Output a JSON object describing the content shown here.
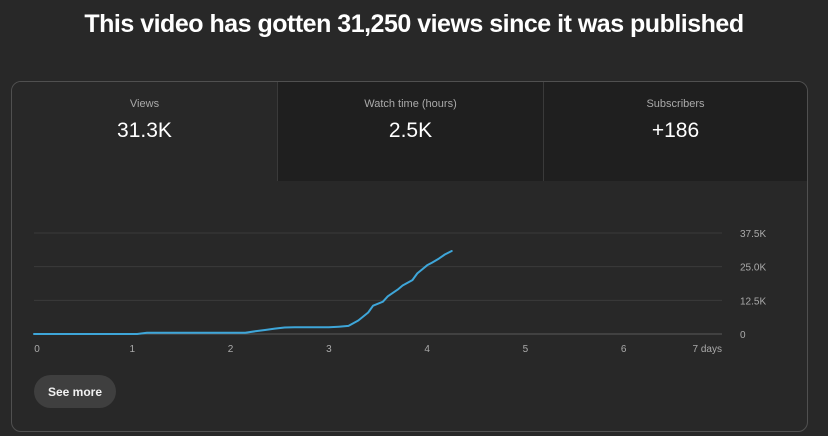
{
  "headline": "This video has gotten 31,250 views since it was published",
  "metrics": [
    {
      "label": "Views",
      "value": "31.3K"
    },
    {
      "label": "Watch time (hours)",
      "value": "2.5K"
    },
    {
      "label": "Subscribers",
      "value": "+186"
    }
  ],
  "see_more_label": "See more",
  "colors": {
    "line": "#3ea6d9",
    "grid": "#3a3a3a",
    "tick_text": "#aaaaaa"
  },
  "chart_data": {
    "type": "line",
    "series": [
      {
        "x": [
          0,
          1.05,
          1.15,
          2.15,
          2.25,
          2.35,
          2.45,
          2.55,
          2.65,
          2.8,
          3.0,
          3.1,
          3.2,
          3.3,
          3.4,
          3.45,
          3.55,
          3.6,
          3.7,
          3.75,
          3.85,
          3.9,
          3.95,
          4.0,
          4.05,
          4.12,
          4.18,
          4.25
        ],
        "y": [
          0,
          0,
          500,
          500,
          1000,
          1500,
          2000,
          2400,
          2500,
          2500,
          2500,
          2700,
          3000,
          5000,
          8000,
          10500,
          12000,
          14000,
          16500,
          18000,
          20000,
          22500,
          24000,
          25500,
          26500,
          28000,
          29500,
          30800
        ]
      }
    ],
    "x_ticks": [
      "0",
      "1",
      "2",
      "3",
      "4",
      "5",
      "6",
      "7 days"
    ],
    "xlim": [
      0,
      7
    ],
    "y_ticks": [
      "0",
      "12.5K",
      "25.0K",
      "37.5K"
    ],
    "ylim": [
      0,
      37500
    ],
    "grid": true
  }
}
